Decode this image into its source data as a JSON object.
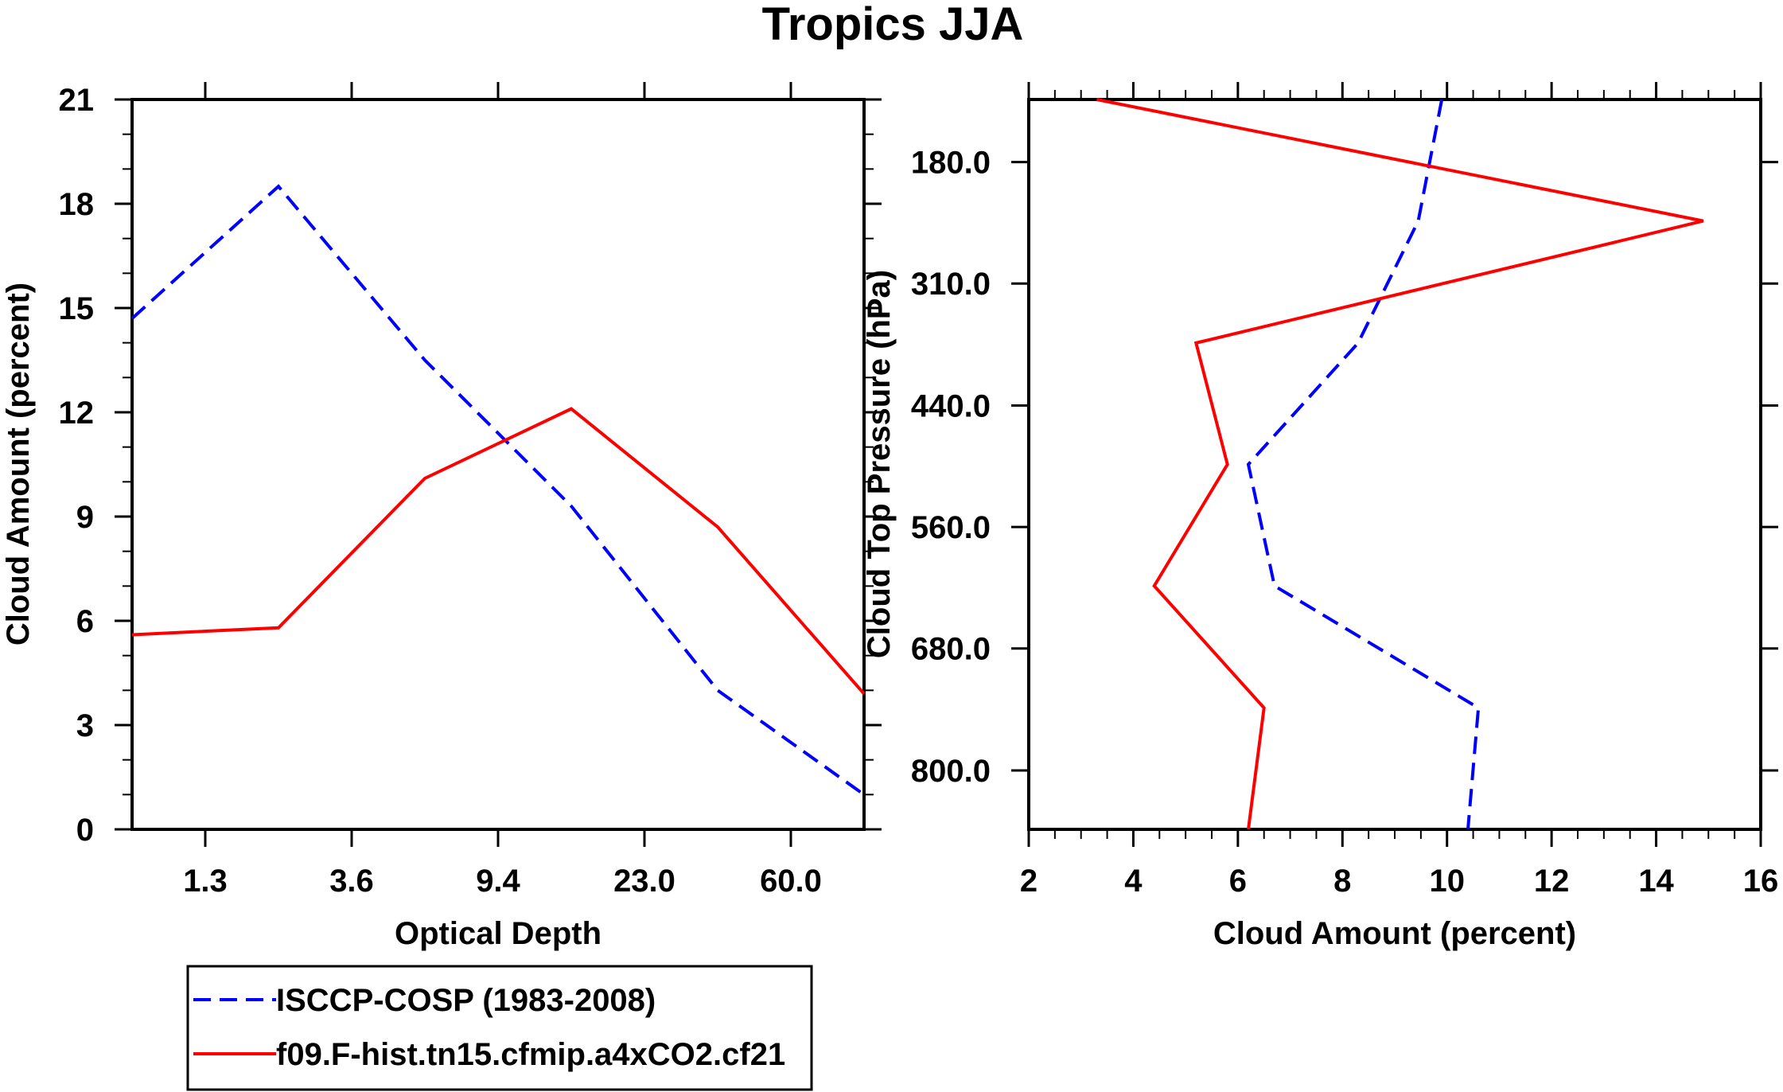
{
  "figure_title": "Tropics JJA",
  "colors": {
    "obs": "#0000ff",
    "model": "#ff0000",
    "frame": "#000000"
  },
  "legend": {
    "entries": [
      {
        "label": "ISCCP-COSP (1983-2008)",
        "color": "#0000ff",
        "dash": "dashed"
      },
      {
        "label": "f09.F-hist.tn15.cfmip.a4xCO2.cf21",
        "color": "#ff0000",
        "dash": "solid"
      }
    ]
  },
  "chart_data": [
    {
      "type": "line",
      "title": "",
      "xlabel": "Optical Depth",
      "ylabel": "Cloud Amount (percent)",
      "xlim": [
        0,
        10
      ],
      "ylim": [
        0,
        21
      ],
      "x_tick_positions": [
        1,
        3,
        5,
        7,
        9
      ],
      "x_tick_labels": [
        "1.3",
        "3.6",
        "9.4",
        "23.0",
        "60.0"
      ],
      "y_ticks": [
        0,
        3,
        6,
        9,
        12,
        15,
        18,
        21
      ],
      "y_tick_labels": [
        "0",
        "3",
        "6",
        "9",
        "12",
        "15",
        "18",
        "21"
      ],
      "x": [
        0,
        2,
        4,
        6,
        8,
        10
      ],
      "series": [
        {
          "name": "ISCCP-COSP (1983-2008)",
          "values": [
            14.7,
            18.5,
            13.5,
            9.3,
            4.0,
            1.0
          ]
        },
        {
          "name": "f09.F-hist.tn15.cfmip.a4xCO2.cf21",
          "values": [
            5.6,
            5.8,
            10.1,
            12.1,
            8.7,
            3.9
          ]
        }
      ]
    },
    {
      "type": "line",
      "title": "",
      "xlabel": "Cloud Amount (percent)",
      "ylabel": "Cloud Top Pressure (hPa)",
      "xlim": [
        2,
        16
      ],
      "ylim": [
        0,
        14
      ],
      "x_ticks": [
        2,
        4,
        6,
        8,
        10,
        12,
        14,
        16
      ],
      "x_tick_labels": [
        "2",
        "4",
        "6",
        "8",
        "10",
        "12",
        "14",
        "16"
      ],
      "y_tick_positions": [
        1.2,
        3.53,
        5.87,
        8.2,
        10.53,
        12.87
      ],
      "y_tick_labels": [
        "180.0",
        "310.0",
        "440.0",
        "560.0",
        "680.0",
        "800.0"
      ],
      "y": [
        0,
        2.33,
        4.67,
        7.0,
        9.33,
        11.67,
        14.0
      ],
      "series": [
        {
          "name": "ISCCP-COSP (1983-2008)",
          "values": [
            9.9,
            9.45,
            8.3,
            6.2,
            6.7,
            10.6,
            10.4
          ]
        },
        {
          "name": "f09.F-hist.tn15.cfmip.a4xCO2.cf21",
          "values": [
            3.3,
            14.9,
            5.2,
            5.8,
            4.4,
            6.5,
            6.2
          ]
        }
      ]
    }
  ]
}
